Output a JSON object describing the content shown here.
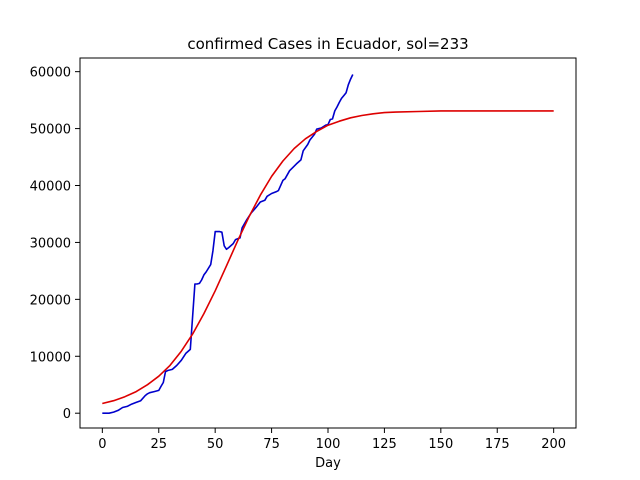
{
  "chart_data": {
    "type": "line",
    "title": "confirmed Cases in Ecuador, sol=233",
    "xlabel": "Day",
    "ylabel": "",
    "xlim": [
      -9.9,
      209.9
    ],
    "ylim": [
      -2600,
      62400
    ],
    "xticks": [
      0,
      25,
      50,
      75,
      100,
      125,
      150,
      175,
      200
    ],
    "yticks": [
      0,
      10000,
      20000,
      30000,
      40000,
      50000,
      60000
    ],
    "grid": false,
    "legend": "none",
    "series": [
      {
        "color": "#0000cc",
        "x": [
          0,
          3,
          5,
          7,
          9,
          11,
          13,
          15,
          17,
          19,
          20,
          21,
          23,
          25,
          26,
          27,
          28,
          29,
          31,
          33,
          35,
          37,
          39,
          41,
          42,
          43,
          44,
          45,
          46,
          48,
          49,
          50,
          52,
          53,
          54,
          55,
          56,
          58,
          59,
          61,
          62,
          64,
          66,
          68,
          70,
          72,
          73,
          75,
          77,
          78,
          80,
          81,
          83,
          84,
          86,
          88,
          89,
          91,
          92,
          94,
          95,
          97,
          99,
          100,
          101,
          102,
          103,
          104,
          105,
          106,
          107,
          108,
          109,
          110,
          111
        ],
        "y": [
          0,
          0,
          200,
          500,
          1000,
          1200,
          1600,
          1900,
          2200,
          3100,
          3400,
          3600,
          3800,
          4000,
          4700,
          5400,
          7300,
          7500,
          7700,
          8400,
          9300,
          10500,
          11200,
          22700,
          22700,
          22800,
          23400,
          24300,
          24800,
          26100,
          28500,
          31900,
          31900,
          31800,
          29400,
          28800,
          29100,
          29800,
          30500,
          30800,
          32600,
          34000,
          35200,
          36100,
          37100,
          37400,
          38100,
          38600,
          38900,
          39100,
          40900,
          41200,
          42600,
          43000,
          43800,
          44500,
          46100,
          47200,
          48000,
          49000,
          49900,
          50100,
          50600,
          50700,
          51600,
          51700,
          53100,
          53800,
          54600,
          55300,
          55800,
          56300,
          57700,
          58700,
          59500
        ]
      },
      {
        "color": "#dd0000",
        "x": [
          0,
          5,
          10,
          15,
          20,
          25,
          30,
          35,
          40,
          45,
          50,
          55,
          60,
          65,
          70,
          75,
          80,
          85,
          90,
          95,
          100,
          105,
          110,
          115,
          120,
          125,
          130,
          140,
          150,
          160,
          170,
          180,
          190,
          200
        ],
        "y": [
          1700,
          2200,
          2900,
          3800,
          5000,
          6500,
          8400,
          10900,
          13900,
          17500,
          21500,
          25900,
          30300,
          34500,
          38300,
          41600,
          44300,
          46500,
          48200,
          49500,
          50600,
          51300,
          51900,
          52300,
          52600,
          52800,
          52900,
          53000,
          53100,
          53100,
          53100,
          53100,
          53100,
          53100
        ]
      }
    ]
  }
}
